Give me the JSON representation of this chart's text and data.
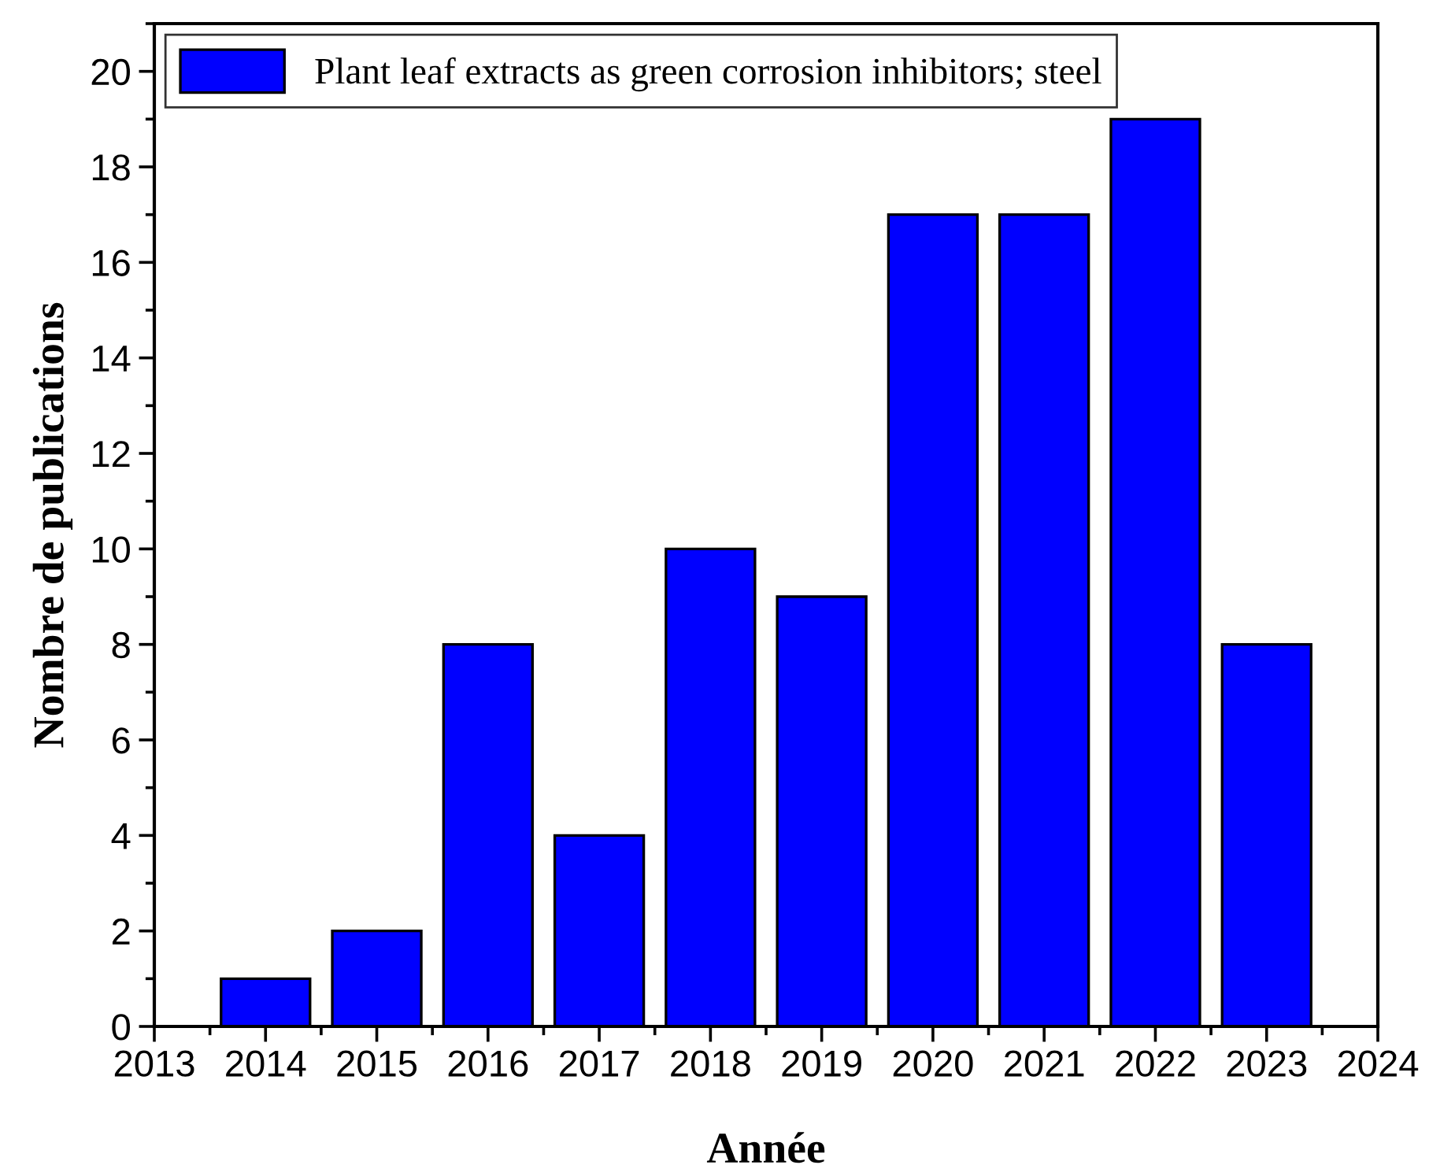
{
  "chart_data": {
    "type": "bar",
    "xlabel": "Année",
    "ylabel": "Nombre de publications",
    "x": [
      2014,
      2015,
      2016,
      2017,
      2018,
      2019,
      2020,
      2021,
      2022,
      2023
    ],
    "series": [
      {
        "name": "Plant leaf extracts as green corrosion inhibitors; steel",
        "color": "#0000ff",
        "values": [
          1,
          2,
          8,
          4,
          10,
          9,
          17,
          17,
          19,
          8
        ]
      }
    ],
    "xlim": [
      2013,
      2024
    ],
    "xticks": [
      2013,
      2014,
      2015,
      2016,
      2017,
      2018,
      2019,
      2020,
      2021,
      2022,
      2023,
      2024
    ],
    "ylim": [
      0,
      21
    ],
    "yticks": [
      0,
      2,
      4,
      6,
      8,
      10,
      12,
      14,
      16,
      18,
      20
    ],
    "legend": "top left",
    "grid": false
  }
}
